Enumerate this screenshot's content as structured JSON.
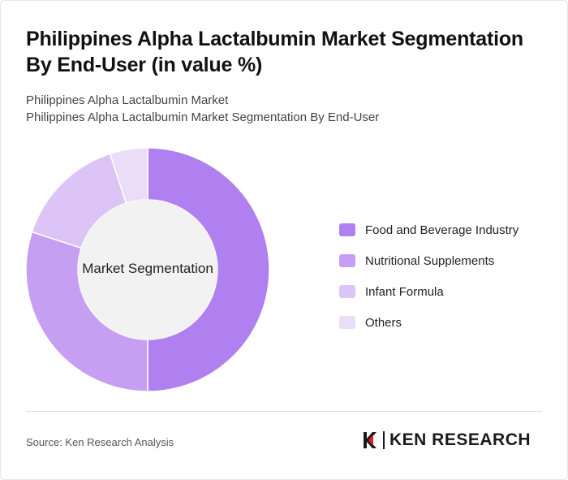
{
  "title": "Philippines Alpha Lactalbumin Market Segmentation By End-User (in value %)",
  "subtitle_lines": [
    "Philippines Alpha Lactalbumin Market",
    "Philippines Alpha Lactalbumin Market Segmentation By End-User"
  ],
  "center_label": "Market Segmentation",
  "source": "Source: Ken Research Analysis",
  "logo_text": "KEN RESEARCH",
  "chart_data": {
    "type": "pie",
    "variant": "donut",
    "title": "Philippines Alpha Lactalbumin Market Segmentation By End-User (in value %)",
    "categories": [
      "Food and Beverage Industry",
      "Nutritional Supplements",
      "Infant Formula",
      "Others"
    ],
    "values": [
      50,
      30,
      15,
      5
    ],
    "colors": [
      "#b07ff0",
      "#c79ff2",
      "#dcc4f6",
      "#ebdcf8"
    ],
    "legend_position": "right"
  }
}
